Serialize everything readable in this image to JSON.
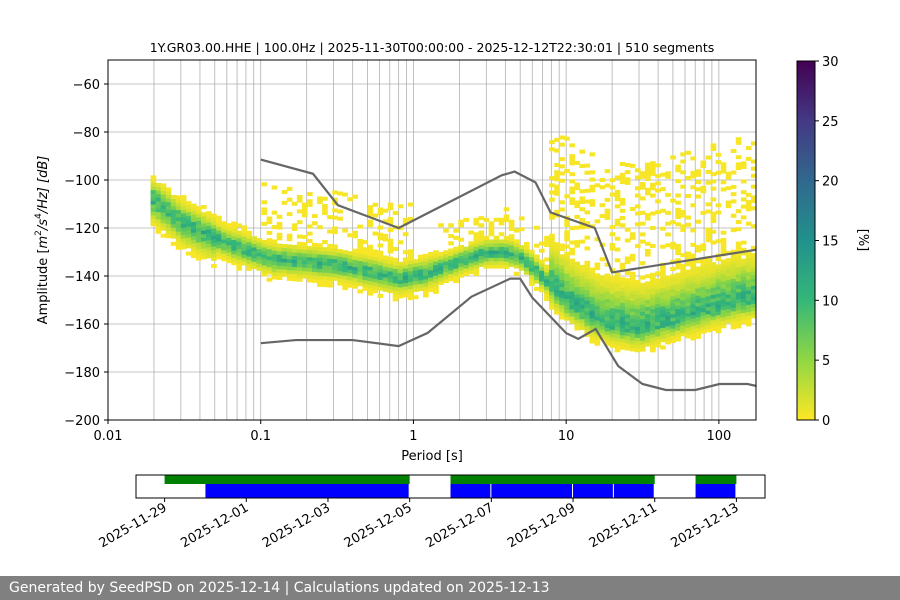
{
  "footer": {
    "text": "Generated by SeedPSD on 2025-12-14 | Calculations updated on 2025-12-13"
  },
  "chart_data": [
    {
      "type": "heatmap",
      "title": "1Y.GR03.00.HHE | 100.0Hz | 2025-11-30T00:00:00 - 2025-12-12T22:30:01 | 510 segments",
      "xlabel": "Period [s]",
      "ylabel_parts": {
        "pre": "Amplitude [",
        "m": "m",
        "e2": "2",
        "mid": "/s",
        "e4": "4",
        "post": "/Hz] [dB]"
      },
      "xscale": "log",
      "xlim": [
        0.01,
        175
      ],
      "ylim": [
        -200,
        -50
      ],
      "x_ticks": [
        {
          "v": 0.01,
          "label": "0.01"
        },
        {
          "v": 0.1,
          "label": "0.1"
        },
        {
          "v": 1,
          "label": "1"
        },
        {
          "v": 10,
          "label": "10"
        },
        {
          "v": 100,
          "label": "100"
        }
      ],
      "y_ticks": [
        -200,
        -180,
        -160,
        -140,
        -120,
        -100,
        -80,
        -60
      ],
      "grid": true,
      "psd_x_range": [
        0.019,
        175
      ],
      "mode_curve": {
        "x": [
          0.019,
          0.03,
          0.05,
          0.08,
          0.12,
          0.18,
          0.3,
          0.5,
          0.8,
          1.2,
          2,
          3,
          4,
          5,
          6,
          8,
          10,
          15,
          20,
          30,
          50,
          80,
          120,
          175
        ],
        "y": [
          -107,
          -117,
          -124,
          -129,
          -133,
          -134,
          -135,
          -138,
          -141,
          -139,
          -134,
          -130,
          -130,
          -132,
          -136,
          -144,
          -150,
          -157,
          -160,
          -162,
          -158,
          -154,
          -151,
          -149
        ]
      },
      "colorbar": {
        "label": "[%]",
        "range": [
          0,
          30
        ],
        "ticks": [
          0,
          5,
          10,
          15,
          20,
          25,
          30
        ]
      },
      "noise_models": {
        "high": {
          "x": [
            0.1,
            0.22,
            0.32,
            0.8,
            3.8,
            4.6,
            6.3,
            7.9,
            15.4,
            20,
            354.8
          ],
          "y": [
            -91.5,
            -97.4,
            -110.5,
            -120,
            -98,
            -96.5,
            -101,
            -113.5,
            -120,
            -138.5,
            -126
          ]
        },
        "low": {
          "x": [
            0.1,
            0.17,
            0.4,
            0.8,
            1.24,
            2.4,
            4.3,
            5,
            6,
            10,
            12,
            15.6,
            21.9,
            31.6,
            45,
            70,
            101,
            154,
            175
          ],
          "y": [
            -168,
            -166.7,
            -166.7,
            -169.2,
            -163.7,
            -148.6,
            -141.1,
            -141.1,
            -149,
            -163.8,
            -166.2,
            -162.1,
            -177.5,
            -185,
            -187.5,
            -187.5,
            -185,
            -185,
            -185.8
          ]
        }
      }
    },
    {
      "type": "bar",
      "subtype": "timeline",
      "x_ticks": [
        "2025-11-29",
        "2025-12-01",
        "2025-12-03",
        "2025-12-05",
        "2025-12-07",
        "2025-12-09",
        "2025-12-11",
        "2025-12-13"
      ],
      "x_tick_days": [
        0,
        2,
        4,
        6,
        8,
        10,
        12,
        14
      ],
      "xlim_days": [
        -0.7,
        14.7
      ],
      "series": [
        {
          "color": "#008000",
          "ranges": [
            [
              0,
              6
            ],
            [
              7,
              12
            ],
            [
              13,
              14
            ]
          ]
        },
        {
          "color": "#0000ff",
          "ranges": [
            [
              1,
              6
            ],
            [
              7,
              8
            ],
            [
              8,
              10
            ],
            [
              10,
              11
            ],
            [
              11,
              12
            ],
            [
              13,
              14
            ]
          ]
        }
      ]
    }
  ]
}
